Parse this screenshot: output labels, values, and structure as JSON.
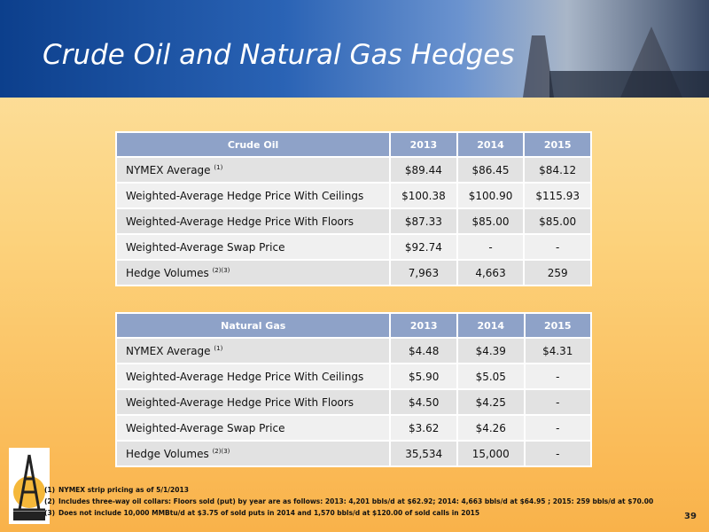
{
  "header": {
    "title": "Crude Oil and Natural Gas Hedges"
  },
  "tables": [
    {
      "columns": [
        "Crude Oil",
        "2013",
        "2014",
        "2015"
      ],
      "rows": [
        {
          "label": "NYMEX Average",
          "note": "(1)",
          "cells": [
            "$89.44",
            "$86.45",
            "$84.12"
          ]
        },
        {
          "label": "Weighted-Average Hedge Price With Ceilings",
          "cells": [
            "$100.38",
            "$100.90",
            "$115.93"
          ]
        },
        {
          "label": "Weighted-Average Hedge Price With Floors",
          "cells": [
            "$87.33",
            "$85.00",
            "$85.00"
          ]
        },
        {
          "label": "Weighted-Average Swap Price",
          "cells": [
            "$92.74",
            "-",
            "-"
          ]
        },
        {
          "label": "Hedge Volumes",
          "note": "(2)(3)",
          "cells": [
            "7,963",
            "4,663",
            "259"
          ]
        }
      ]
    },
    {
      "columns": [
        "Natural Gas",
        "2013",
        "2014",
        "2015"
      ],
      "rows": [
        {
          "label": "NYMEX Average",
          "note": "(1)",
          "cells": [
            "$4.48",
            "$4.39",
            "$4.31"
          ]
        },
        {
          "label": "Weighted-Average Hedge Price With Ceilings",
          "cells": [
            "$5.90",
            "$5.05",
            "-"
          ]
        },
        {
          "label": "Weighted-Average Hedge Price With Floors",
          "cells": [
            "$4.50",
            "$4.25",
            "-"
          ]
        },
        {
          "label": "Weighted-Average Swap Price",
          "cells": [
            "$3.62",
            "$4.26",
            "-"
          ]
        },
        {
          "label": "Hedge Volumes",
          "note": "(2)(3)",
          "cells": [
            "35,534",
            "15,000",
            "-"
          ]
        }
      ]
    }
  ],
  "footnotes": [
    {
      "marker": "(1)",
      "text": "NYMEX strip pricing as of 5/1/2013"
    },
    {
      "marker": "(2)",
      "text": "Includes three-way oil collars:  Floors sold (put) by year are as follows:  2013: 4,201 bbls/d at $62.92; 2014: 4,663 bbls/d at $64.95 ; 2015: 259 bbls/d at $70.00"
    },
    {
      "marker": "(3)",
      "text": "Does not include 10,000 MMBtu/d at $3.75 of sold puts in 2014 and 1,570  bbls/d at $120.00 of sold calls in 2015"
    }
  ],
  "page_number": "39"
}
